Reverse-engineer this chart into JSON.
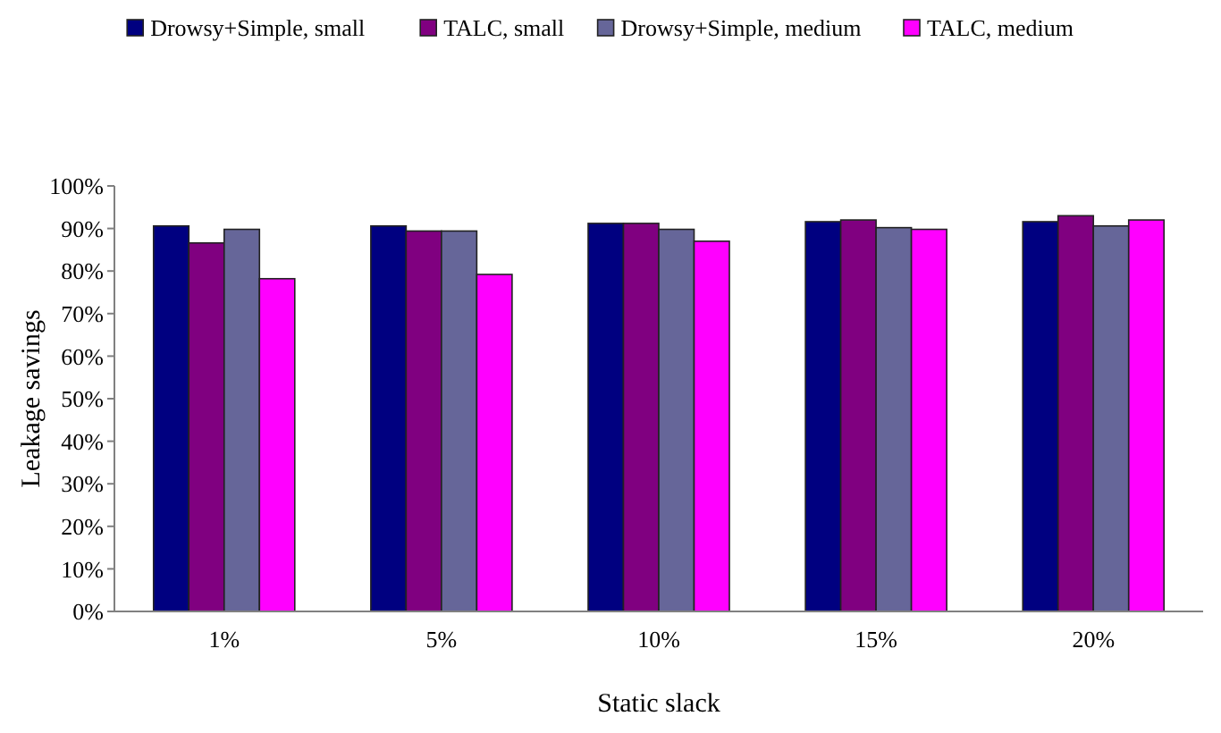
{
  "chart_data": {
    "type": "bar",
    "xlabel": "Static slack",
    "ylabel": "Leakage savings",
    "categories": [
      "1%",
      "5%",
      "10%",
      "15%",
      "20%"
    ],
    "series": [
      {
        "name": "Drowsy+Simple, small",
        "color": "#000080",
        "values": [
          90.6,
          90.6,
          91.2,
          91.6,
          91.6
        ]
      },
      {
        "name": "TALC, small",
        "color": "#800080",
        "values": [
          86.6,
          89.4,
          91.2,
          92,
          93
        ]
      },
      {
        "name": "Drowsy+Simple, medium",
        "color": "#666699",
        "values": [
          89.8,
          89.4,
          89.8,
          90.2,
          90.6
        ]
      },
      {
        "name": "TALC, medium",
        "color": "#ff00ff",
        "values": [
          78.2,
          79.2,
          87,
          89.8,
          92
        ]
      }
    ],
    "ylim": [
      0,
      100
    ],
    "yticks": [
      {
        "value": 0,
        "label": "0%"
      },
      {
        "value": 10,
        "label": "10%"
      },
      {
        "value": 20,
        "label": "20%"
      },
      {
        "value": 30,
        "label": "30%"
      },
      {
        "value": 40,
        "label": "40%"
      },
      {
        "value": 50,
        "label": "50%"
      },
      {
        "value": 60,
        "label": "60%"
      },
      {
        "value": 70,
        "label": "70%"
      },
      {
        "value": 80,
        "label": "80%"
      },
      {
        "value": 90,
        "label": "90%"
      },
      {
        "value": 100,
        "label": "100%"
      }
    ],
    "grid": false,
    "legend": "top"
  }
}
